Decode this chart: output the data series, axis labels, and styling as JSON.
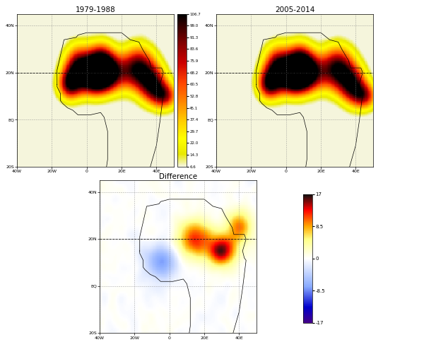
{
  "title1": "1979-1988",
  "title2": "2005-2014",
  "title3": "Difference",
  "cbar1_ticks": [
    6.6,
    14.3,
    22.0,
    29.7,
    37.4,
    45.1,
    52.8,
    60.5,
    68.2,
    75.9,
    83.6,
    91.3,
    99.0,
    106.7
  ],
  "cbar1_vmin": 6.6,
  "cbar1_vmax": 106.7,
  "cbar2_ticks": [
    -17,
    -8.5,
    0,
    8.5,
    17
  ],
  "cbar2_vmin": -17,
  "cbar2_vmax": 17,
  "lon_min": -40,
  "lon_max": 50,
  "lat_min": -20,
  "lat_max": 45,
  "xticks": [
    -40,
    -20,
    0,
    20,
    40
  ],
  "yticks": [
    -20,
    0,
    20,
    40
  ],
  "xlabel_labels": [
    "40W",
    "20W",
    "0",
    "20E",
    "40E"
  ],
  "ylabel_labels": [
    "20S",
    "EQ",
    "20N",
    "40N"
  ],
  "grid_color": "#aaaaaa",
  "dashed_line_lat": 20
}
